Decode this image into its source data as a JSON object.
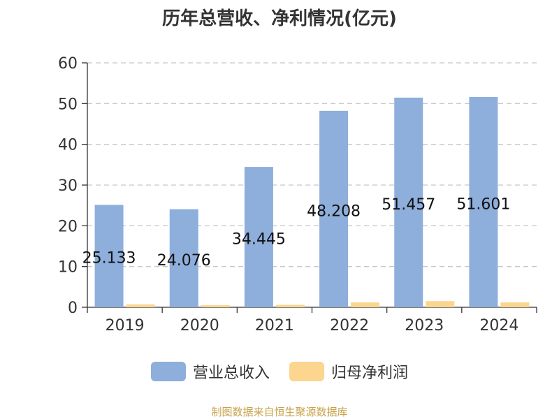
{
  "chart_data": {
    "type": "bar",
    "title": "历年总营收、净利情况(亿元)",
    "categories": [
      "2019",
      "2020",
      "2021",
      "2022",
      "2023",
      "2024"
    ],
    "series": [
      {
        "name": "营业总收入",
        "values": [
          25.133,
          24.076,
          34.445,
          48.208,
          51.457,
          51.601
        ],
        "color": "#8eaedb"
      },
      {
        "name": "归母净利润",
        "values": [
          0.7,
          0.5,
          0.6,
          1.2,
          1.5,
          1.2
        ],
        "color": "#fcd58e"
      }
    ],
    "data_labels": [
      "25.133",
      "24.076",
      "34.445",
      "48.208",
      "51.457",
      "51.601"
    ],
    "yticks": [
      "0",
      "10",
      "20",
      "30",
      "40",
      "50",
      "60"
    ],
    "ylim": [
      0,
      60
    ],
    "grid": true,
    "legend_position": "bottom"
  },
  "source_text": "制图数据来自恒生聚源数据库"
}
